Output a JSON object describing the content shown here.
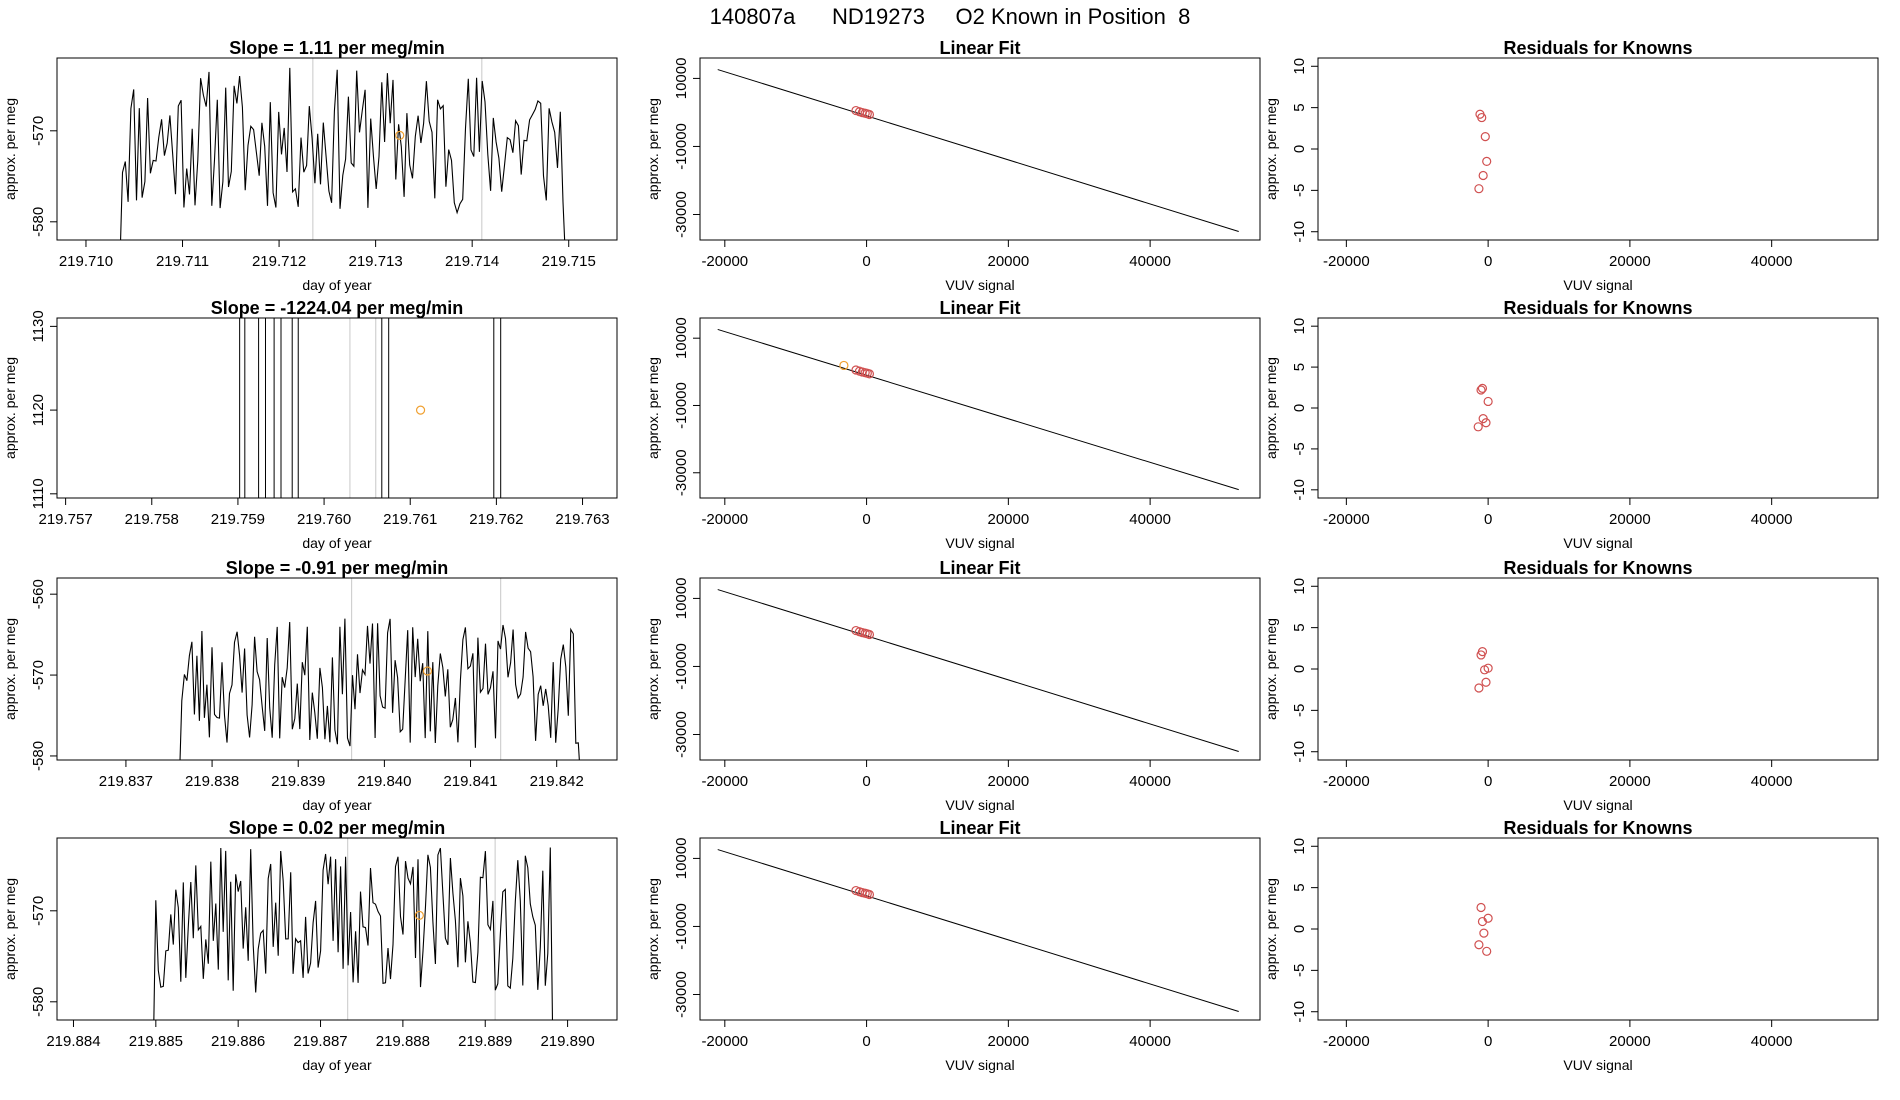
{
  "header": {
    "run_id": "140807a",
    "tank_id": "ND19273",
    "description": "O2 Known in Position  8"
  },
  "colors": {
    "line": "#000000",
    "frame": "#000000",
    "grid_line": "#c8c8c8",
    "known_point": "#d05050",
    "current_point": "#f0a030"
  },
  "chart_data": [
    {
      "type": "line",
      "row": 0,
      "col": 0,
      "title": "Slope =  1.11  per meg/min",
      "xlabel": "day of year",
      "ylabel": "approx. per meg",
      "xlim": [
        219.7097,
        219.7155
      ],
      "ylim": [
        -582,
        -562
      ],
      "xticks": [
        "219.710",
        "219.711",
        "219.712",
        "219.713",
        "219.714",
        "219.715"
      ],
      "yticks": [
        "-580",
        "-570"
      ],
      "series_range": [
        219.71035,
        219.71497
      ],
      "vlines": [
        219.71235,
        219.7141
      ],
      "marker": {
        "x": 219.71325,
        "y": -570.5
      },
      "seed": 11,
      "mean": -571,
      "amp": 8
    },
    {
      "type": "scatter",
      "row": 0,
      "col": 1,
      "title": "Linear Fit",
      "xlabel": "VUV signal",
      "ylabel": "approx. per meg",
      "xlim": [
        -23500,
        55500
      ],
      "ylim": [
        -37500,
        16000
      ],
      "xticks": [
        "-20000",
        "0",
        "20000",
        "40000"
      ],
      "yticks": [
        "10000",
        "-10000",
        "-30000"
      ],
      "fit_line": {
        "x": [
          -21000,
          52500
        ],
        "y": [
          12600,
          -35000
        ]
      },
      "points": {
        "x": [
          -1500,
          -1000,
          -600,
          -200,
          100,
          400
        ],
        "y": [
          550,
          200,
          -50,
          -250,
          -400,
          -600
        ]
      }
    },
    {
      "type": "scatter",
      "row": 0,
      "col": 2,
      "title": "Residuals for Knowns",
      "xlabel": "VUV signal",
      "ylabel": "approx. per meg",
      "xlim": [
        -24000,
        55000
      ],
      "ylim": [
        -11,
        11
      ],
      "xticks": [
        "-20000",
        "0",
        "20000",
        "40000"
      ],
      "yticks": [
        "10",
        "5",
        "0",
        "-5",
        "-10"
      ],
      "points": {
        "x": [
          -1150,
          -900,
          -400,
          -200,
          -700,
          -1300
        ],
        "y": [
          4.2,
          3.8,
          1.5,
          -1.5,
          -3.2,
          -4.8
        ]
      }
    },
    {
      "type": "line",
      "row": 1,
      "col": 0,
      "title": "Slope =  -1224.04  per meg/min",
      "xlabel": "day of year",
      "ylabel": "approx. per meg",
      "xlim": [
        219.7569,
        219.7634
      ],
      "ylim": [
        1109.5,
        1131
      ],
      "xticks": [
        "219.757",
        "219.758",
        "219.759",
        "219.760",
        "219.761",
        "219.762",
        "219.763"
      ],
      "yticks": [
        "1110",
        "1120",
        "1130"
      ],
      "vspikes": [
        219.75902,
        219.75908,
        219.75924,
        219.75932,
        219.75942,
        219.7595,
        219.75963,
        219.7597,
        219.76067,
        219.76075,
        219.76197,
        219.76205
      ],
      "vlines": [
        219.7603,
        219.7606
      ],
      "marker": {
        "x": 219.76112,
        "y": 1120
      }
    },
    {
      "type": "scatter",
      "row": 1,
      "col": 1,
      "title": "Linear Fit",
      "xlabel": "VUV signal",
      "ylabel": "approx. per meg",
      "xlim": [
        -23500,
        55500
      ],
      "ylim": [
        -37500,
        16000
      ],
      "xticks": [
        "-20000",
        "0",
        "20000",
        "40000"
      ],
      "yticks": [
        "10000",
        "-10000",
        "-30000"
      ],
      "fit_line": {
        "x": [
          -21000,
          52500
        ],
        "y": [
          12600,
          -35000
        ]
      },
      "points": {
        "x": [
          -1500,
          -1000,
          -600,
          -200,
          100,
          400
        ],
        "y": [
          550,
          200,
          -50,
          -250,
          -400,
          -600
        ]
      },
      "extra_point": {
        "x": -3200,
        "y": 1900
      }
    },
    {
      "type": "scatter",
      "row": 1,
      "col": 2,
      "title": "Residuals for Knowns",
      "xlabel": "VUV signal",
      "ylabel": "approx. per meg",
      "xlim": [
        -24000,
        55000
      ],
      "ylim": [
        -11,
        11
      ],
      "xticks": [
        "-20000",
        "0",
        "20000",
        "40000"
      ],
      "yticks": [
        "10",
        "5",
        "0",
        "-5",
        "-10"
      ],
      "points": {
        "x": [
          -1000,
          -800,
          0,
          -700,
          -300,
          -1400
        ],
        "y": [
          2.2,
          2.4,
          0.8,
          -1.3,
          -1.8,
          -2.3
        ]
      }
    },
    {
      "type": "line",
      "row": 2,
      "col": 0,
      "title": "Slope =  -0.91  per meg/min",
      "xlabel": "day of year",
      "ylabel": "approx. per meg",
      "xlim": [
        219.8362,
        219.8427
      ],
      "ylim": [
        -580.5,
        -558
      ],
      "xticks": [
        "219.837",
        "219.838",
        "219.839",
        "219.840",
        "219.841",
        "219.842"
      ],
      "yticks": [
        "-580",
        "-570",
        "-560"
      ],
      "series_range": [
        219.83762,
        219.84228
      ],
      "vlines": [
        219.83962,
        219.84135
      ],
      "marker": {
        "x": 219.8405,
        "y": -569.5
      },
      "seed": 23,
      "mean": -571,
      "amp": 8
    },
    {
      "type": "scatter",
      "row": 2,
      "col": 1,
      "title": "Linear Fit",
      "xlabel": "VUV signal",
      "ylabel": "approx. per meg",
      "xlim": [
        -23500,
        55500
      ],
      "ylim": [
        -37500,
        16000
      ],
      "xticks": [
        "-20000",
        "0",
        "20000",
        "40000"
      ],
      "yticks": [
        "10000",
        "-10000",
        "-30000"
      ],
      "fit_line": {
        "x": [
          -21000,
          52500
        ],
        "y": [
          12600,
          -35000
        ]
      },
      "points": {
        "x": [
          -1500,
          -1000,
          -600,
          -200,
          100,
          400
        ],
        "y": [
          550,
          200,
          -50,
          -250,
          -400,
          -600
        ]
      }
    },
    {
      "type": "scatter",
      "row": 2,
      "col": 2,
      "title": "Residuals for Knowns",
      "xlabel": "VUV signal",
      "ylabel": "approx. per meg",
      "xlim": [
        -24000,
        55000
      ],
      "ylim": [
        -11,
        11
      ],
      "xticks": [
        "-20000",
        "0",
        "20000",
        "40000"
      ],
      "yticks": [
        "10",
        "5",
        "0",
        "-5",
        "-10"
      ],
      "points": {
        "x": [
          -800,
          -1000,
          -500,
          0,
          -300,
          -1300
        ],
        "y": [
          2.1,
          1.7,
          -0.1,
          0.1,
          -1.6,
          -2.3
        ]
      }
    },
    {
      "type": "line",
      "row": 3,
      "col": 0,
      "title": "Slope =  0.02  per meg/min",
      "xlabel": "day of year",
      "ylabel": "approx. per meg",
      "xlim": [
        219.8838,
        219.8906
      ],
      "ylim": [
        -582,
        -562
      ],
      "xticks": [
        "219.884",
        "219.885",
        "219.886",
        "219.887",
        "219.888",
        "219.889",
        "219.890"
      ],
      "yticks": [
        "-580",
        "-570"
      ],
      "series_range": [
        219.88497,
        219.88982
      ],
      "vlines": [
        219.88733,
        219.88912
      ],
      "marker": {
        "x": 219.8882,
        "y": -570.5
      },
      "seed": 37,
      "mean": -571,
      "amp": 8
    },
    {
      "type": "scatter",
      "row": 3,
      "col": 1,
      "title": "Linear Fit",
      "xlabel": "VUV signal",
      "ylabel": "approx. per meg",
      "xlim": [
        -23500,
        55500
      ],
      "ylim": [
        -37500,
        16000
      ],
      "xticks": [
        "-20000",
        "0",
        "20000",
        "40000"
      ],
      "yticks": [
        "10000",
        "-10000",
        "-30000"
      ],
      "fit_line": {
        "x": [
          -21000,
          52500
        ],
        "y": [
          12600,
          -35000
        ]
      },
      "points": {
        "x": [
          -1500,
          -1000,
          -600,
          -200,
          100,
          400
        ],
        "y": [
          550,
          200,
          -50,
          -250,
          -400,
          -600
        ]
      }
    },
    {
      "type": "scatter",
      "row": 3,
      "col": 2,
      "title": "Residuals for Knowns",
      "xlabel": "VUV signal",
      "ylabel": "approx. per meg",
      "xlim": [
        -24000,
        55000
      ],
      "ylim": [
        -11,
        11
      ],
      "xticks": [
        "-20000",
        "0",
        "20000",
        "40000"
      ],
      "yticks": [
        "10",
        "5",
        "0",
        "-5",
        "-10"
      ],
      "points": {
        "x": [
          -1000,
          -800,
          0,
          -600,
          -1300,
          -200
        ],
        "y": [
          2.6,
          0.9,
          1.3,
          -0.5,
          -1.9,
          -2.7
        ]
      }
    }
  ]
}
